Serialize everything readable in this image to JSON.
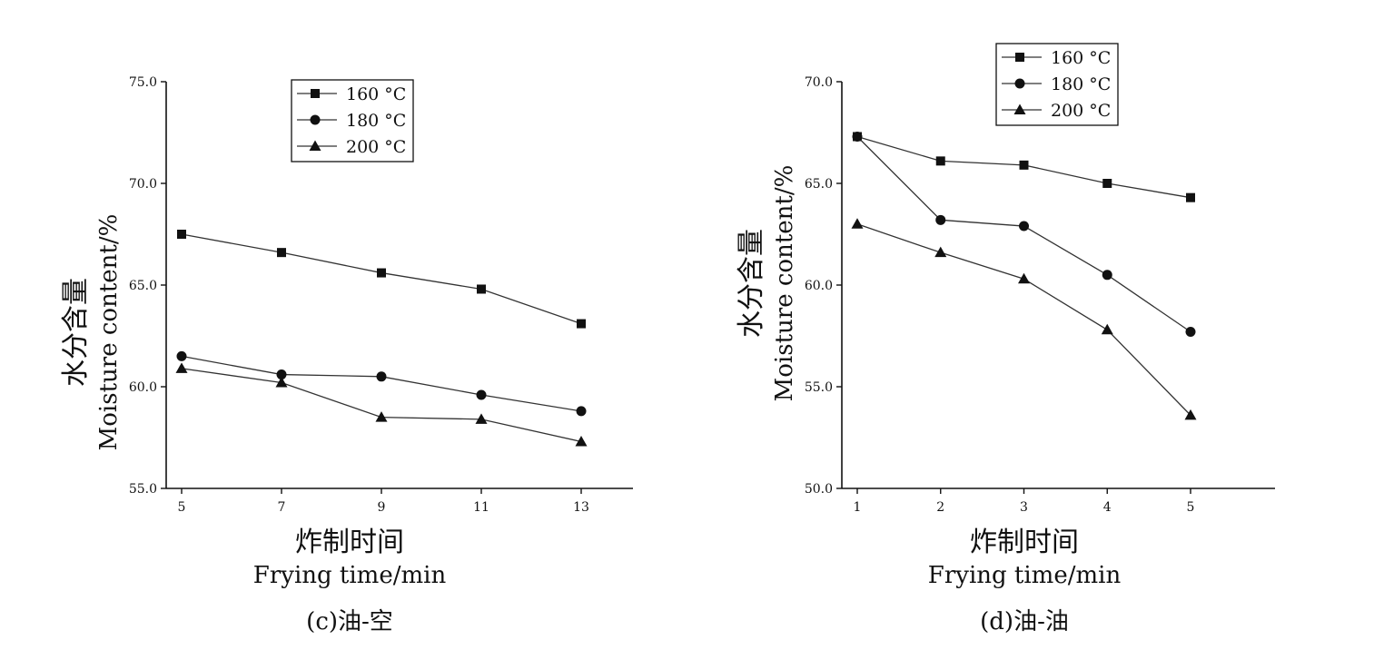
{
  "chart_data": [
    {
      "type": "line",
      "caption": "(c)油-空",
      "xlabel_cn": "炸制时间",
      "xlabel_en": "Frying time/min",
      "ylabel_cn": "水分含量",
      "ylabel_en": "Moisture content/%",
      "x": [
        5,
        7,
        9,
        11,
        13
      ],
      "x_ticks": [
        "5",
        "7",
        "9",
        "11",
        "13"
      ],
      "ylim": [
        55,
        75
      ],
      "y_ticks": [
        "55.0",
        "60.0",
        "65.0",
        "70.0",
        "75.0"
      ],
      "y_tick_values": [
        55,
        60,
        65,
        70,
        75
      ],
      "legend_position": "top-center",
      "series": [
        {
          "name": "160 °C",
          "marker": "square",
          "values": [
            67.5,
            66.6,
            65.6,
            64.8,
            63.1
          ]
        },
        {
          "name": "180 °C",
          "marker": "circle",
          "values": [
            61.5,
            60.6,
            60.5,
            59.6,
            58.8
          ]
        },
        {
          "name": "200 °C",
          "marker": "triangle",
          "values": [
            60.9,
            60.2,
            58.5,
            58.4,
            57.3
          ]
        }
      ]
    },
    {
      "type": "line",
      "caption": "(d)油-油",
      "xlabel_cn": "炸制时间",
      "xlabel_en": "Frying time/min",
      "ylabel_cn": "水分含量",
      "ylabel_en": "Moisture content/%",
      "x": [
        1,
        2,
        3,
        4,
        5
      ],
      "x_ticks": [
        "1",
        "2",
        "3",
        "4",
        "5"
      ],
      "ylim": [
        50,
        70
      ],
      "y_ticks": [
        "50.0",
        "55.0",
        "60.0",
        "65.0",
        "70.0"
      ],
      "y_tick_values": [
        50,
        55,
        60,
        65,
        70
      ],
      "legend_position": "top-left",
      "series": [
        {
          "name": "160 °C",
          "marker": "square",
          "values": [
            67.3,
            66.1,
            65.9,
            65.0,
            64.3
          ]
        },
        {
          "name": "180 °C",
          "marker": "circle",
          "values": [
            67.3,
            63.2,
            62.9,
            60.5,
            57.7
          ]
        },
        {
          "name": "200 °C",
          "marker": "triangle",
          "values": [
            63.0,
            61.6,
            60.3,
            57.8,
            53.6
          ]
        }
      ]
    }
  ]
}
